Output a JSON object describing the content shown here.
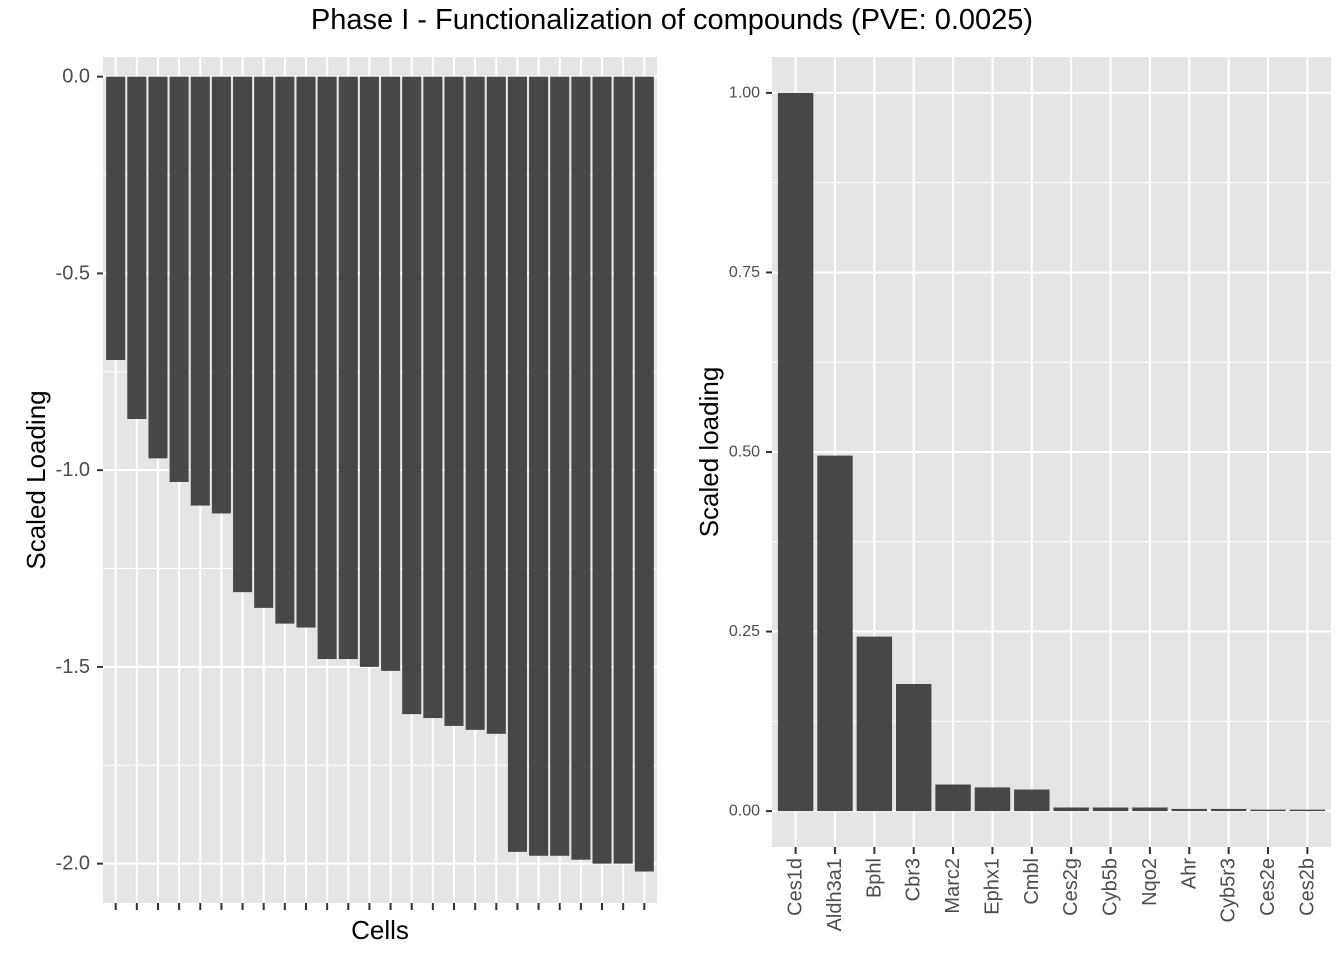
{
  "figure_title": "Phase I - Functionalization of compounds (PVE: 0.0025)",
  "colors": {
    "panel_background": "#e5e5e5",
    "grid": "#ffffff",
    "bar": "#474747",
    "tick_text": "#4d4d4d",
    "axis_text": "#000000"
  },
  "chart_data": [
    {
      "type": "bar",
      "title": "",
      "xlabel": "Cells",
      "ylabel": "Scaled Loading",
      "ylim": [
        -2.1,
        0.05
      ],
      "yticks": [
        0.0,
        -0.5,
        -1.0,
        -1.5,
        -2.0
      ],
      "ytick_labels": [
        "0.0",
        "-0.5",
        "-1.0",
        "-1.5",
        "-2.0"
      ],
      "x_tick_labels_shown": false,
      "grid": true,
      "values": [
        -0.72,
        -0.87,
        -0.97,
        -1.03,
        -1.09,
        -1.11,
        -1.31,
        -1.35,
        -1.39,
        -1.4,
        -1.48,
        -1.48,
        -1.5,
        -1.51,
        -1.62,
        -1.63,
        -1.65,
        -1.66,
        -1.67,
        -1.97,
        -1.98,
        -1.98,
        -1.99,
        -2.0,
        -2.0,
        -2.02
      ]
    },
    {
      "type": "bar",
      "title": "",
      "xlabel": "",
      "ylabel": "Scaled loading",
      "ylim": [
        -0.05,
        1.05
      ],
      "yticks": [
        0.0,
        0.25,
        0.5,
        0.75,
        1.0
      ],
      "ytick_labels": [
        "0.00",
        "0.25",
        "0.50",
        "0.75",
        "1.00"
      ],
      "grid": true,
      "categories": [
        "Ces1d",
        "Aldh3a1",
        "Bphl",
        "Cbr3",
        "Marc2",
        "Ephx1",
        "Cmbl",
        "Ces2g",
        "Cyb5b",
        "Nqo2",
        "Ahr",
        "Cyb5r3",
        "Ces2e",
        "Ces2b"
      ],
      "values": [
        1.0,
        0.495,
        0.243,
        0.177,
        0.037,
        0.033,
        0.03,
        0.005,
        0.005,
        0.005,
        0.003,
        0.003,
        0.002,
        0.002
      ]
    }
  ]
}
